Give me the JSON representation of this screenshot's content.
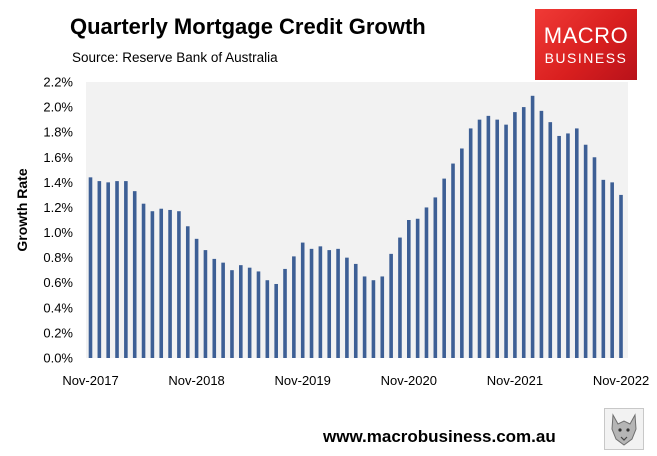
{
  "header": {
    "title": "Quarterly Mortgage Credit Growth",
    "subtitle": "Source: Reserve Bank of Australia"
  },
  "brand": {
    "logo_line1": "MACRO",
    "logo_line2": "BUSINESS",
    "website": "www.macrobusiness.com.au",
    "logo_color": "#e2312d"
  },
  "chart_data": {
    "type": "bar",
    "title": "Quarterly Mortgage Credit Growth",
    "subtitle": "Source: Reserve Bank of Australia",
    "xlabel": "",
    "ylabel": "Growth Rate",
    "ylim": [
      0,
      0.022
    ],
    "yticks": [
      "0.0%",
      "0.2%",
      "0.4%",
      "0.6%",
      "0.8%",
      "1.0%",
      "1.2%",
      "1.4%",
      "1.6%",
      "1.8%",
      "2.0%",
      "2.2%"
    ],
    "xtick_labels": [
      "Nov-2017",
      "Nov-2018",
      "Nov-2019",
      "Nov-2020",
      "Nov-2021",
      "Nov-2022"
    ],
    "x_start": "Nov-2017",
    "x_end": "Nov-2022",
    "frequency": "monthly",
    "bar_color": "#3d5f95",
    "grid": false,
    "legend": "none",
    "values": [
      0.0144,
      0.0141,
      0.014,
      0.0141,
      0.0141,
      0.0133,
      0.0123,
      0.0117,
      0.0119,
      0.0118,
      0.0117,
      0.0105,
      0.0095,
      0.0086,
      0.0079,
      0.0076,
      0.007,
      0.0074,
      0.0072,
      0.0069,
      0.0062,
      0.0059,
      0.0071,
      0.0081,
      0.0092,
      0.0087,
      0.0089,
      0.0086,
      0.0087,
      0.008,
      0.0075,
      0.0065,
      0.0062,
      0.0065,
      0.0083,
      0.0096,
      0.011,
      0.0111,
      0.012,
      0.0128,
      0.0143,
      0.0155,
      0.0167,
      0.0183,
      0.019,
      0.0193,
      0.019,
      0.0186,
      0.0196,
      0.02,
      0.0209,
      0.0197,
      0.0188,
      0.0177,
      0.0179,
      0.0183,
      0.017,
      0.016,
      0.0142,
      0.014,
      0.013
    ]
  }
}
